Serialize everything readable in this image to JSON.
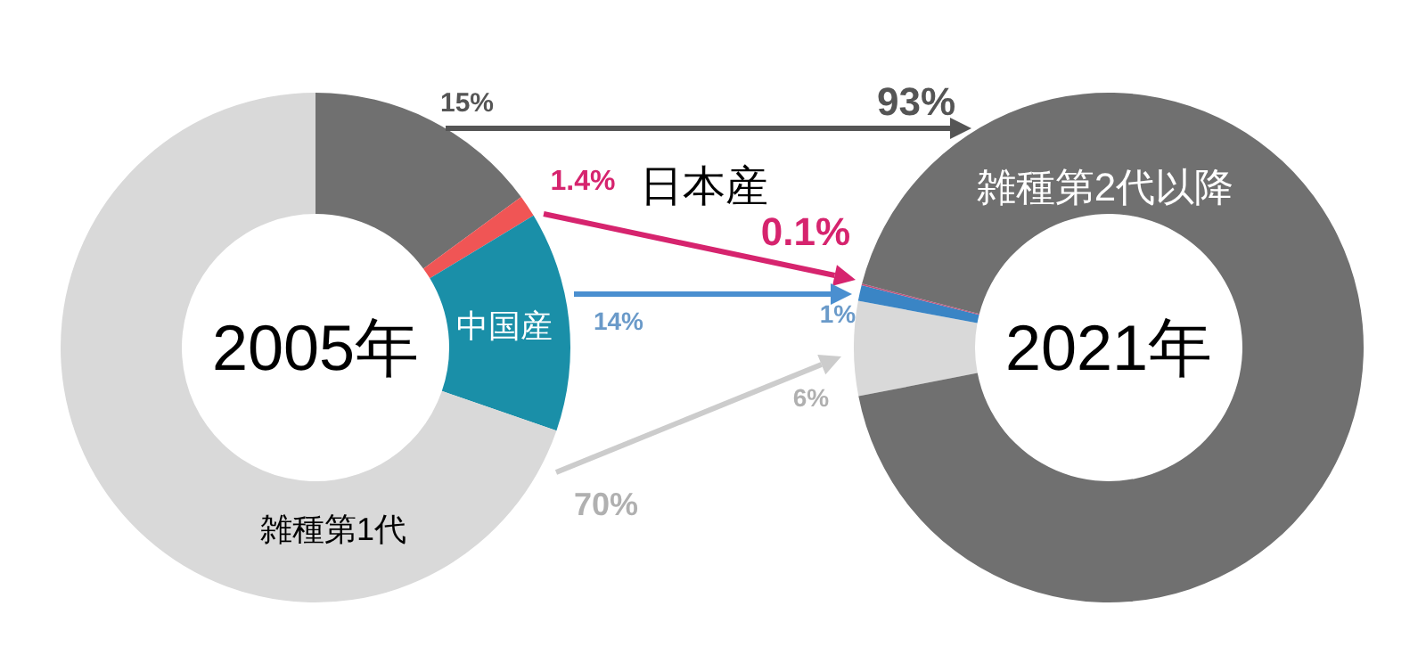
{
  "chart_data": [
    {
      "type": "donut",
      "title": "2005年",
      "categories": [
        null,
        "日本産",
        "中国産",
        "雑種第1代"
      ],
      "values": [
        15,
        1.4,
        14,
        70
      ],
      "colors": [
        "#707070",
        "#f05555",
        "#1a8fa8",
        "#d9d9d9"
      ],
      "value_labels": [
        "15%",
        "1.4%",
        "14%",
        "70%"
      ]
    },
    {
      "type": "donut",
      "title": "2021年",
      "categories": [
        null,
        null,
        null,
        "雑種第2代以降"
      ],
      "values": [
        6,
        1,
        0.1,
        93
      ],
      "colors": [
        "#d9d9d9",
        "#3a85c5",
        "#c0507a",
        "#707070"
      ],
      "value_labels": [
        "6%",
        "1%",
        "0.1%",
        "93%"
      ]
    }
  ]
}
